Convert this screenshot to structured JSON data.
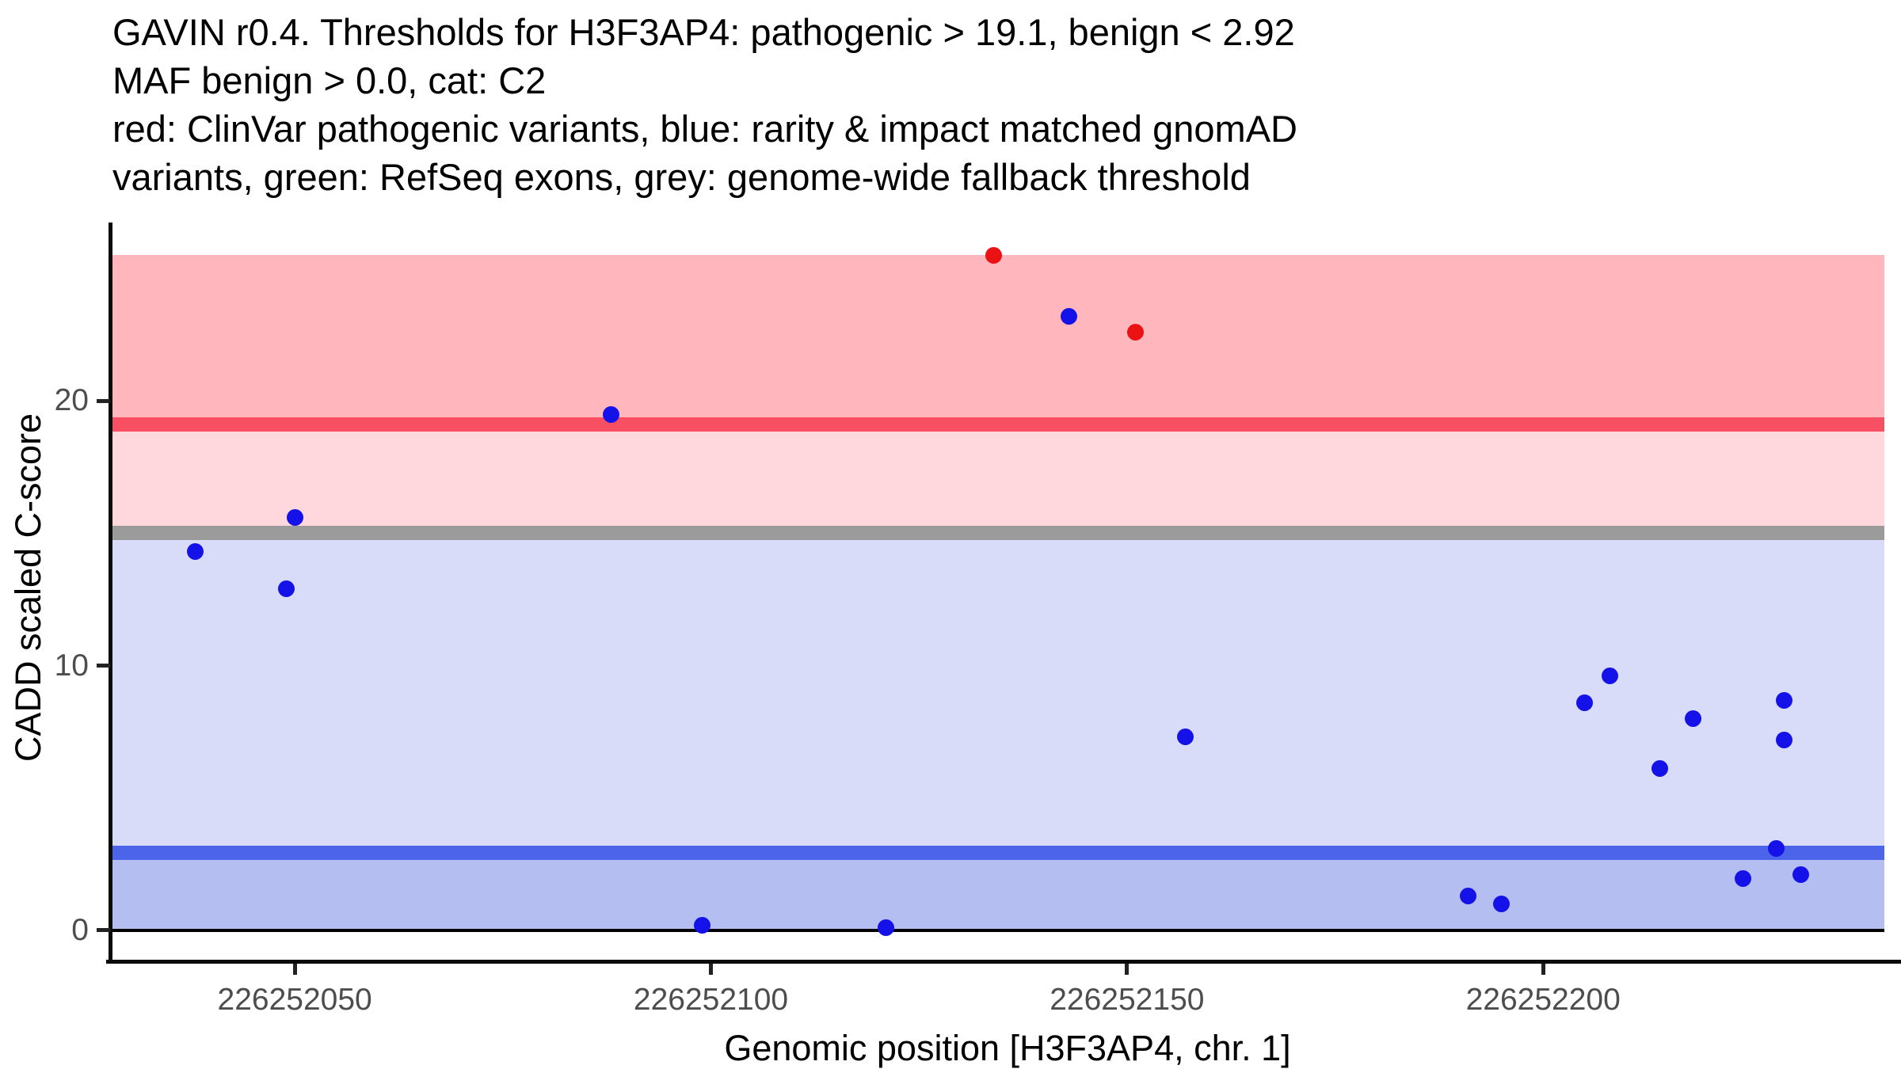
{
  "title_lines": [
    "GAVIN r0.4. Thresholds for H3F3AP4: pathogenic > 19.1, benign < 2.92",
    "MAF benign > 0.0, cat: C2",
    "red: ClinVar pathogenic variants, blue: rarity & impact matched gnomAD",
    "variants, green: RefSeq exons, grey: genome-wide fallback threshold"
  ],
  "axes": {
    "x_label": "Genomic position [H3F3AP4, chr. 1]",
    "y_label": "CADD scaled C-score"
  },
  "chart_data": {
    "type": "scatter",
    "title": "GAVIN r0.4. Thresholds for H3F3AP4: pathogenic > 19.1, benign < 2.92 MAF benign > 0.0, cat: C2",
    "subtitle": "red: ClinVar pathogenic variants, blue: rarity & impact matched gnomAD variants, green: RefSeq exons, grey: genome-wide fallback threshold",
    "xlabel": "Genomic position [H3F3AP4, chr. 1]",
    "ylabel": "CADD scaled C-score",
    "xlim": [
      226252028,
      226252243
    ],
    "ylim": [
      -1.17,
      26.68
    ],
    "x_ticks": [
      226252050,
      226252100,
      226252150,
      226252200
    ],
    "y_ticks": [
      0,
      10,
      20
    ],
    "grid": false,
    "legend_position": "none",
    "thresholds": {
      "pathogenic": 19.1,
      "benign": 2.92,
      "genome_wide_fallback": 15.0,
      "maf_benign": 0.0,
      "category": "C2",
      "gene": "H3F3AP4",
      "chromosome": "1"
    },
    "zones": [
      {
        "name": "pathogenic-zone",
        "from": 19.1,
        "to": 25.5,
        "color": "#FFB6BC"
      },
      {
        "name": "uncertain-upper-zone",
        "from": 15.0,
        "to": 19.1,
        "color": "#FFD8DD"
      },
      {
        "name": "uncertain-lower-zone",
        "from": 2.92,
        "to": 15.0,
        "color": "#D8DCF8"
      },
      {
        "name": "benign-zone",
        "from": 0.0,
        "to": 2.92,
        "color": "#B5BEF1"
      }
    ],
    "threshold_lines": [
      {
        "name": "pathogenic-threshold-line",
        "value": 19.1,
        "color": "#F94F62"
      },
      {
        "name": "genome-wide-fallback-threshold-line",
        "value": 15.0,
        "color": "#9B9B9B"
      },
      {
        "name": "benign-threshold-line",
        "value": 2.92,
        "color": "#4C64E9"
      }
    ],
    "zero_line": {
      "value": 0.0,
      "color": "#000000"
    },
    "band_x_end": 226252241,
    "series": [
      {
        "name": "ClinVar pathogenic variants",
        "color": "#EA1212",
        "points": [
          [
            226252134,
            25.5
          ],
          [
            226252151,
            22.6
          ]
        ]
      },
      {
        "name": "rarity & impact matched gnomAD variants",
        "color": "#1412E8",
        "points": [
          [
            226252143,
            23.2
          ],
          [
            226252088,
            19.5
          ],
          [
            226252050,
            15.6
          ],
          [
            226252038,
            14.3
          ],
          [
            226252049,
            12.9
          ],
          [
            226252099,
            0.2
          ],
          [
            226252121,
            0.1
          ],
          [
            226252157,
            7.3
          ],
          [
            226252191,
            1.3
          ],
          [
            226252195,
            1.0
          ],
          [
            226252205,
            8.6
          ],
          [
            226252208,
            9.6
          ],
          [
            226252214,
            6.1
          ],
          [
            226252218,
            8.0
          ],
          [
            226252224,
            1.95
          ],
          [
            226252228,
            3.1
          ],
          [
            226252229,
            8.7
          ],
          [
            226252229,
            7.2
          ],
          [
            226252231,
            2.1
          ]
        ]
      }
    ]
  }
}
